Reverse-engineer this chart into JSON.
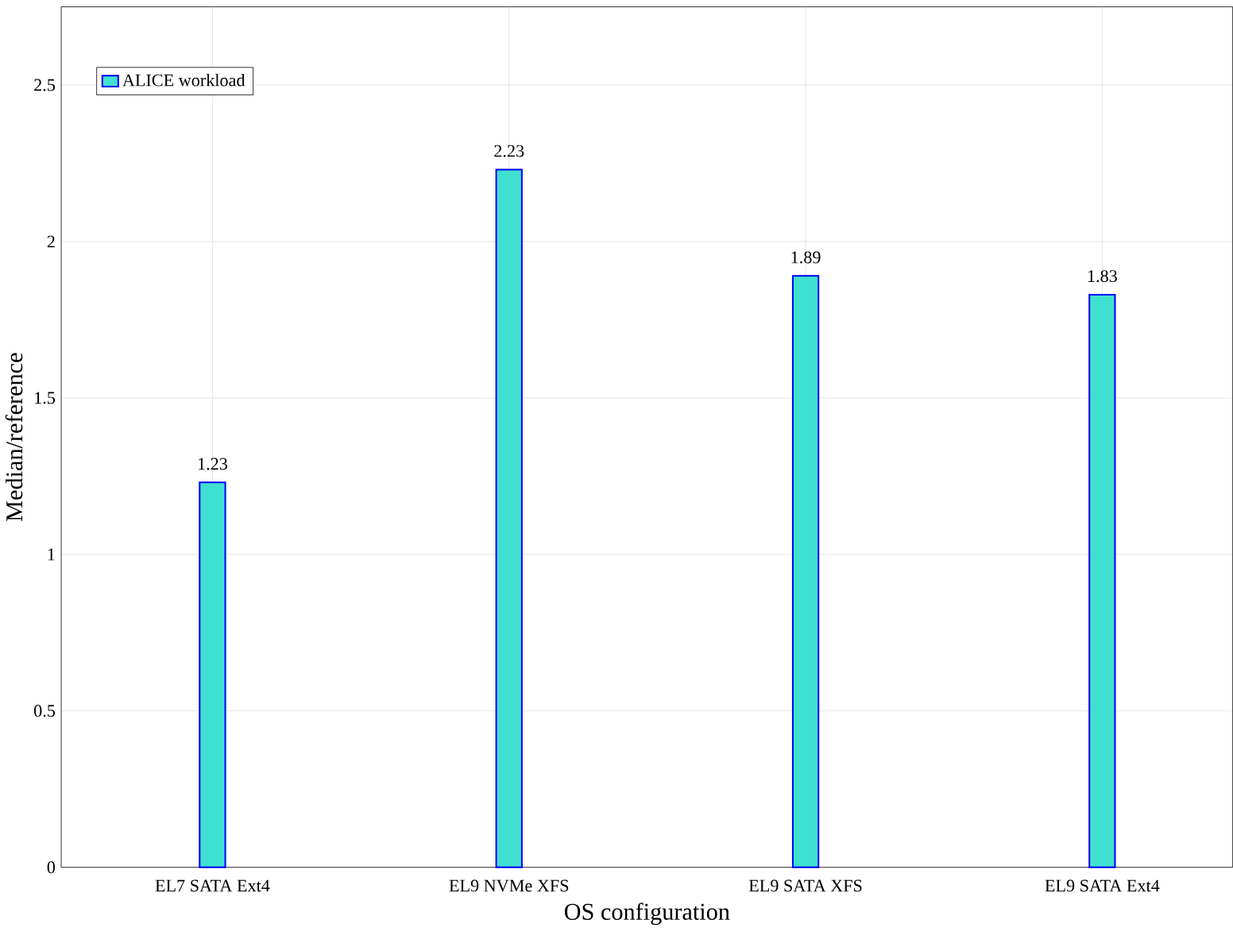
{
  "chart_data": {
    "type": "bar",
    "xlabel": "OS configuration",
    "ylabel": "Median/reference",
    "categories": [
      "EL7 SATA Ext4",
      "EL9 NVMe XFS",
      "EL9 SATA XFS",
      "EL9 SATA Ext4"
    ],
    "series": [
      {
        "name": "ALICE workload",
        "color": "#40e0d0",
        "values": [
          1.23,
          2.23,
          1.89,
          1.83
        ]
      }
    ],
    "ylim": [
      0,
      2.75
    ],
    "yticks": [
      0,
      0.5,
      1,
      1.5,
      2,
      2.5
    ],
    "grid": true,
    "legend": "top left",
    "data_labels": true
  }
}
